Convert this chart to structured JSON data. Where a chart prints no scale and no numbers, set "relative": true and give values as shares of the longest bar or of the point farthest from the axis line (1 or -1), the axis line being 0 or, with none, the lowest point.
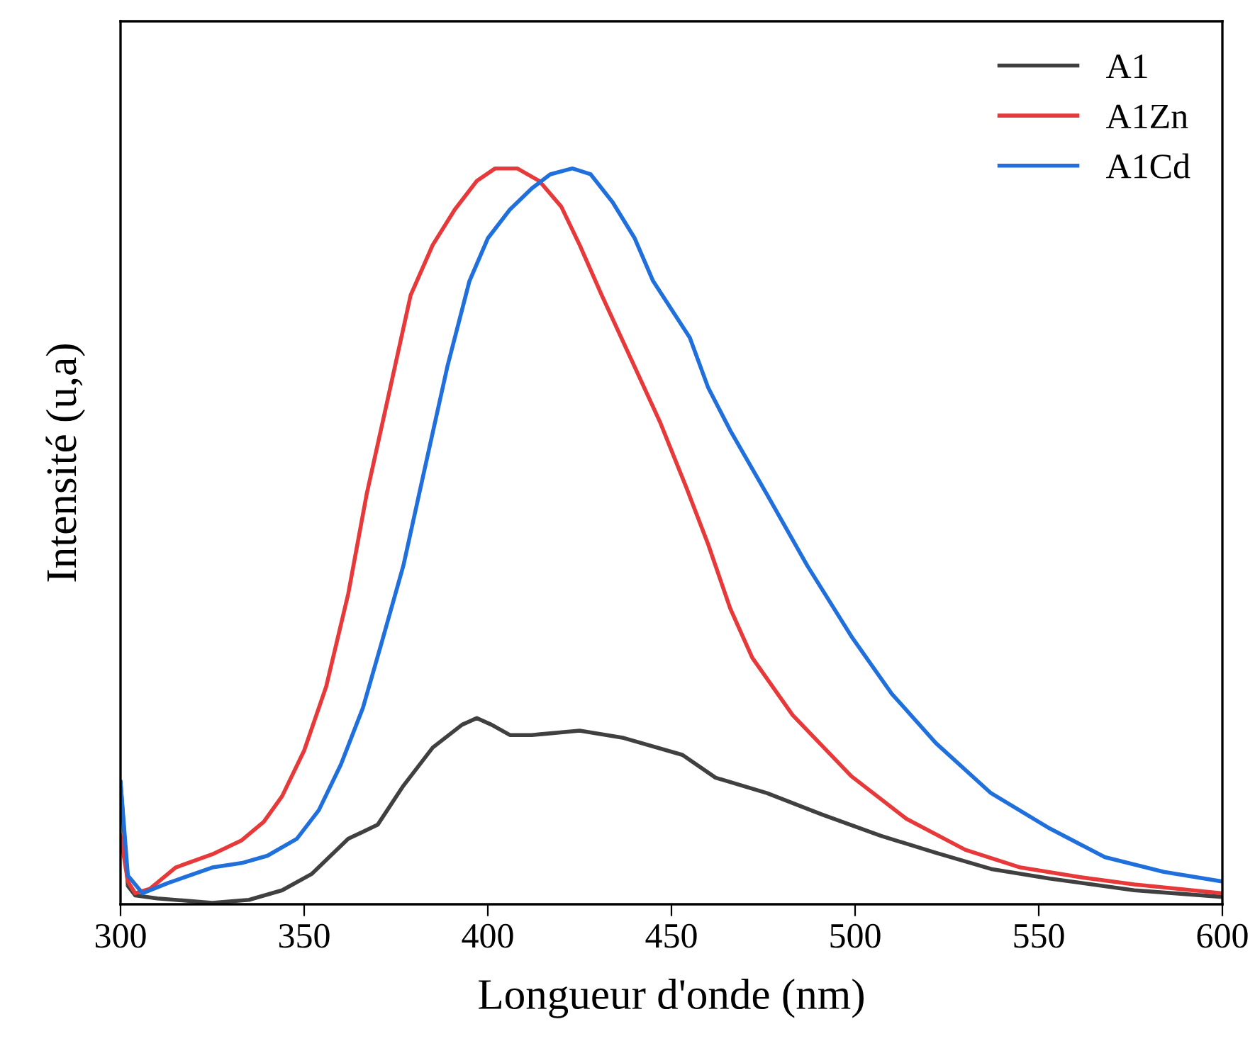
{
  "chart_data": {
    "type": "line",
    "relative": true,
    "xlabel": "Longueur d'onde (nm)",
    "ylabel": "Intensité (u,a)",
    "xlim": [
      300,
      600
    ],
    "xticks": [
      300,
      350,
      400,
      450,
      500,
      550,
      600
    ],
    "legend": "top right",
    "grid": false,
    "series": [
      {
        "name": "A1",
        "color": "#404040",
        "x": [
          300,
          302,
          304,
          310,
          325,
          335,
          344,
          352,
          362,
          370,
          377,
          385,
          393,
          397,
          401,
          406,
          412,
          425,
          437,
          453,
          462,
          476,
          491,
          507,
          522,
          537,
          553,
          576,
          600
        ],
        "values": [
          0.166,
          0.025,
          0.012,
          0.008,
          0.002,
          0.006,
          0.019,
          0.041,
          0.089,
          0.108,
          0.161,
          0.213,
          0.244,
          0.253,
          0.244,
          0.23,
          0.23,
          0.236,
          0.226,
          0.203,
          0.172,
          0.151,
          0.122,
          0.093,
          0.07,
          0.048,
          0.035,
          0.019,
          0.01
        ]
      },
      {
        "name": "A1Zn",
        "color": "#e8393a",
        "x": [
          300,
          302,
          304,
          308,
          315,
          325,
          333,
          339,
          344,
          350,
          356,
          362,
          367,
          373,
          379,
          385,
          391,
          397,
          402,
          408,
          414,
          420,
          425,
          431,
          439,
          447,
          454,
          460,
          466,
          472,
          483,
          499,
          514,
          530,
          545,
          561,
          576,
          600
        ],
        "values": [
          0.093,
          0.031,
          0.015,
          0.021,
          0.05,
          0.068,
          0.087,
          0.112,
          0.147,
          0.209,
          0.296,
          0.422,
          0.557,
          0.692,
          0.828,
          0.896,
          0.944,
          0.983,
          1.0,
          1.0,
          0.983,
          0.948,
          0.896,
          0.828,
          0.741,
          0.654,
          0.567,
          0.489,
          0.402,
          0.335,
          0.257,
          0.174,
          0.116,
          0.074,
          0.05,
          0.037,
          0.027,
          0.015
        ]
      },
      {
        "name": "A1Cd",
        "color": "#1f6fdc",
        "x": [
          300,
          302,
          306,
          313,
          325,
          333,
          340,
          348,
          354,
          360,
          366,
          371,
          377,
          383,
          389,
          395,
          400,
          406,
          412,
          417,
          423,
          428,
          434,
          440,
          445,
          455,
          460,
          466,
          476,
          487,
          499,
          510,
          522,
          537,
          553,
          568,
          584,
          600
        ],
        "values": [
          0.166,
          0.039,
          0.015,
          0.029,
          0.05,
          0.056,
          0.066,
          0.089,
          0.128,
          0.19,
          0.267,
          0.354,
          0.46,
          0.596,
          0.731,
          0.847,
          0.905,
          0.944,
          0.973,
          0.992,
          1.0,
          0.992,
          0.954,
          0.905,
          0.847,
          0.77,
          0.702,
          0.644,
          0.557,
          0.46,
          0.364,
          0.286,
          0.219,
          0.151,
          0.103,
          0.064,
          0.044,
          0.031
        ]
      }
    ]
  }
}
